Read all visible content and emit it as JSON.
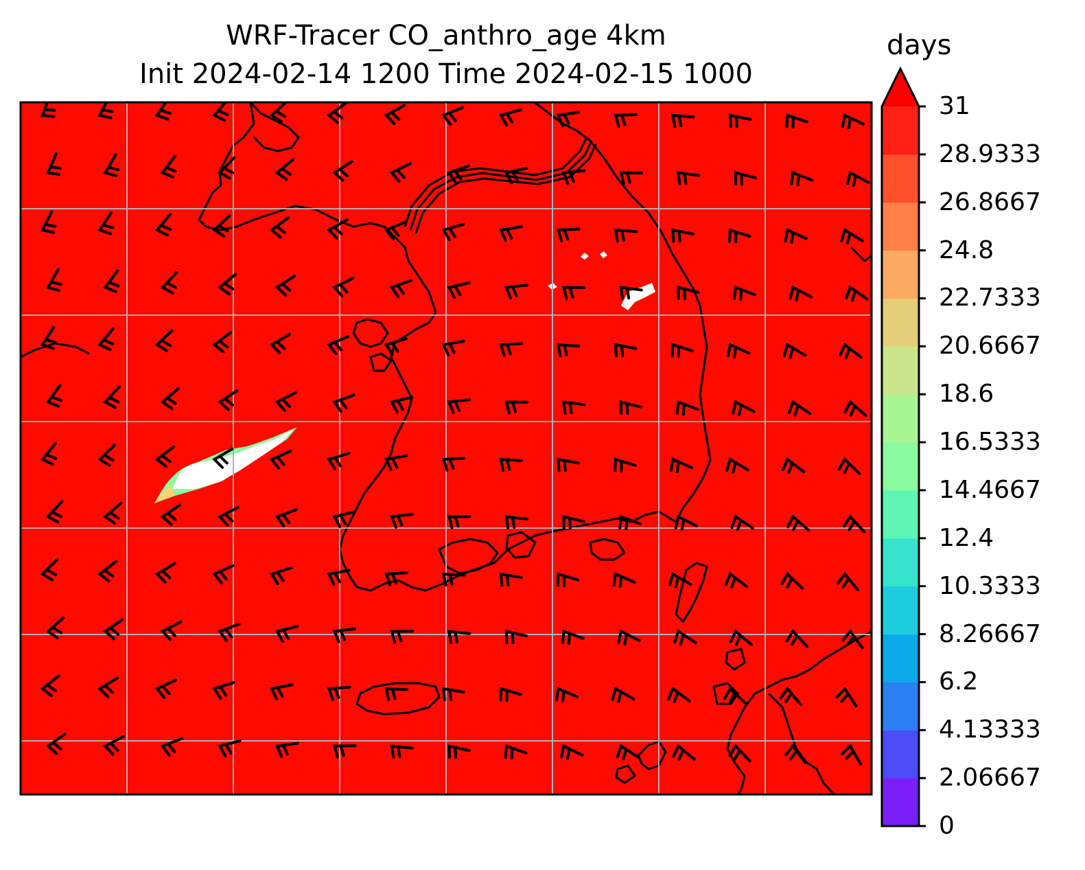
{
  "title": {
    "line1": "WRF-Tracer CO_anthro_age 4km",
    "line2": "Init 2024-02-14 1200 Time 2024-02-15 1000"
  },
  "map": {
    "background_fill": "#ff0a00",
    "border_color": "#000000",
    "gridline_color": "#b0b0b0",
    "coastline_color": "#000000",
    "barb_color": "#000000",
    "gridlines": true,
    "wind_barbs": true
  },
  "colorbar": {
    "unit_label": "days",
    "extend": "max",
    "min": 0,
    "max": 31,
    "tick_labels": [
      "0",
      "2.06667",
      "4.13333",
      "6.2",
      "8.26667",
      "10.3333",
      "12.4",
      "14.4667",
      "16.5333",
      "18.6",
      "20.6667",
      "22.7333",
      "24.8",
      "26.8667",
      "28.9333",
      "31"
    ],
    "colors": [
      "#7a1ef8",
      "#4c4cf9",
      "#2a80f2",
      "#0aaaea",
      "#1ccde0",
      "#36e3cc",
      "#5ef5b5",
      "#8afa9e",
      "#a8f593",
      "#cbe68a",
      "#e3cf7a",
      "#fcaa62",
      "#ff7f47",
      "#ff502c",
      "#ff2016"
    ],
    "extend_color": "#ff0000"
  }
}
